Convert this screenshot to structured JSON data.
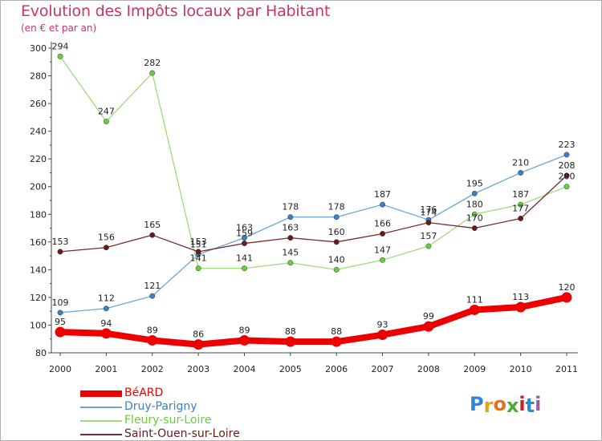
{
  "title": "Evolution des Impôts locaux par Habitant",
  "subtitle": "(en € et par an)",
  "logo": {
    "letters": [
      "P",
      "r",
      "o",
      "x",
      "i",
      "t",
      "i"
    ],
    "colors": [
      "#2a8ad0",
      "#e8a020",
      "#e87020",
      "#4aaa3a",
      "#d02020",
      "#2a8ad0",
      "#9a5ab0"
    ]
  },
  "chart_data": {
    "type": "line",
    "title": "Evolution des Impôts locaux par Habitant",
    "subtitle": "(en € et par an)",
    "xlabel": "",
    "ylabel": "",
    "x": [
      "2000",
      "2001",
      "2002",
      "2003",
      "2004",
      "2005",
      "2006",
      "2007",
      "2008",
      "2009",
      "2010",
      "2011"
    ],
    "ylim": [
      80,
      300
    ],
    "yticks": [
      "80",
      "100",
      "120",
      "140",
      "160",
      "180",
      "200",
      "220",
      "240",
      "260",
      "280",
      "300"
    ],
    "grid": false,
    "legend_position": "bottom-left",
    "series": [
      {
        "name": "BéARD",
        "color": "#ee0000",
        "marker_color": "#ee0000",
        "text_color": "#ee0000",
        "weight": "heavy",
        "values": [
          95,
          94,
          89,
          86,
          89,
          88,
          88,
          93,
          99,
          111,
          113,
          120
        ],
        "labels": [
          "95",
          "94",
          "89",
          "86",
          "89",
          "88",
          "88",
          "93",
          "99",
          "111",
          "113",
          "120"
        ]
      },
      {
        "name": "Druy-Parigny",
        "color": "#6aa6d8",
        "marker_color": "#3a80c4",
        "text_color": "#3a80c4",
        "weight": "thin",
        "values": [
          109,
          112,
          121,
          151,
          163,
          178,
          178,
          187,
          176,
          195,
          210,
          223
        ],
        "labels": [
          "109",
          "112",
          "121",
          "151",
          "163",
          "178",
          "178",
          "187",
          "176",
          "195",
          "210",
          "223"
        ]
      },
      {
        "name": "Fleury-sur-Loire",
        "color": "#9edc7a",
        "marker_color": "#6acd3a",
        "text_color": "#6acd3a",
        "weight": "thin",
        "values": [
          294,
          247,
          282,
          141,
          141,
          145,
          140,
          147,
          157,
          180,
          187,
          200
        ],
        "labels": [
          "294",
          "247",
          "282",
          "141",
          "141",
          "145",
          "140",
          "147",
          "157",
          "180",
          "187",
          "200"
        ]
      },
      {
        "name": "Saint-Ouen-sur-Loire",
        "color": "#7a2a2a",
        "marker_color": "#6a1a1a",
        "text_color": "#6a1a1a",
        "weight": "thin",
        "values": [
          153,
          156,
          165,
          153,
          159,
          163,
          160,
          166,
          174,
          170,
          177,
          208
        ],
        "labels": [
          "153",
          "156",
          "165",
          "153",
          "159",
          "163",
          "160",
          "166",
          "174",
          "170",
          "177",
          "208"
        ]
      }
    ]
  }
}
